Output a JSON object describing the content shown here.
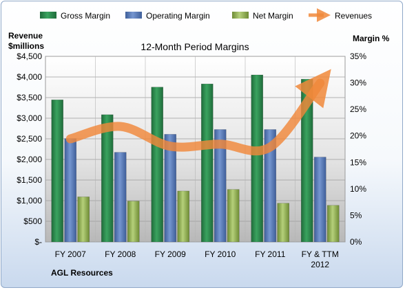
{
  "chart_data": {
    "type": "bar",
    "title": "12-Month Period Margins",
    "categories": [
      "FY 2007",
      "FY 2008",
      "FY 2009",
      "FY 2010",
      "FY 2011",
      "FY & TTM 2012"
    ],
    "series": [
      {
        "name": "Gross Margin",
        "axis": "right",
        "color": "#2e8b4e",
        "values": [
          26.8,
          24.0,
          29.2,
          29.8,
          31.5,
          30.7
        ]
      },
      {
        "name": "Operating Margin",
        "axis": "right",
        "color": "#5a7fbf",
        "values": [
          19.5,
          16.9,
          20.3,
          21.2,
          21.2,
          16.0
        ]
      },
      {
        "name": "Net Margin",
        "axis": "right",
        "color": "#9bbb59",
        "values": [
          8.5,
          7.7,
          9.6,
          9.9,
          7.3,
          6.9
        ]
      }
    ],
    "line_series": {
      "name": "Revenues",
      "axis": "left",
      "color": "#f0883a",
      "values": [
        2500,
        2800,
        2320,
        2370,
        2300,
        3850
      ]
    },
    "left_axis": {
      "label_line1": "Revenue",
      "label_line2": "$millions",
      "ylim": [
        0,
        4500
      ],
      "ticks": [
        "$-",
        "$500",
        "$1,000",
        "$1,500",
        "$2,000",
        "$2,500",
        "$3,000",
        "$3,500",
        "$4,000",
        "$4,500"
      ]
    },
    "right_axis": {
      "label": "Margin %",
      "ylim": [
        0,
        35
      ],
      "ticks": [
        "0%",
        "5%",
        "10%",
        "15%",
        "20%",
        "25%",
        "30%",
        "35%"
      ]
    },
    "category_labels": [
      [
        "FY 2007"
      ],
      [
        "FY 2008"
      ],
      [
        "FY 2009"
      ],
      [
        "FY 2010"
      ],
      [
        "FY 2011"
      ],
      [
        "FY & TTM",
        "2012"
      ]
    ],
    "legend": {
      "placement": "top"
    },
    "grid": true,
    "source_label": "AGL Resources"
  }
}
